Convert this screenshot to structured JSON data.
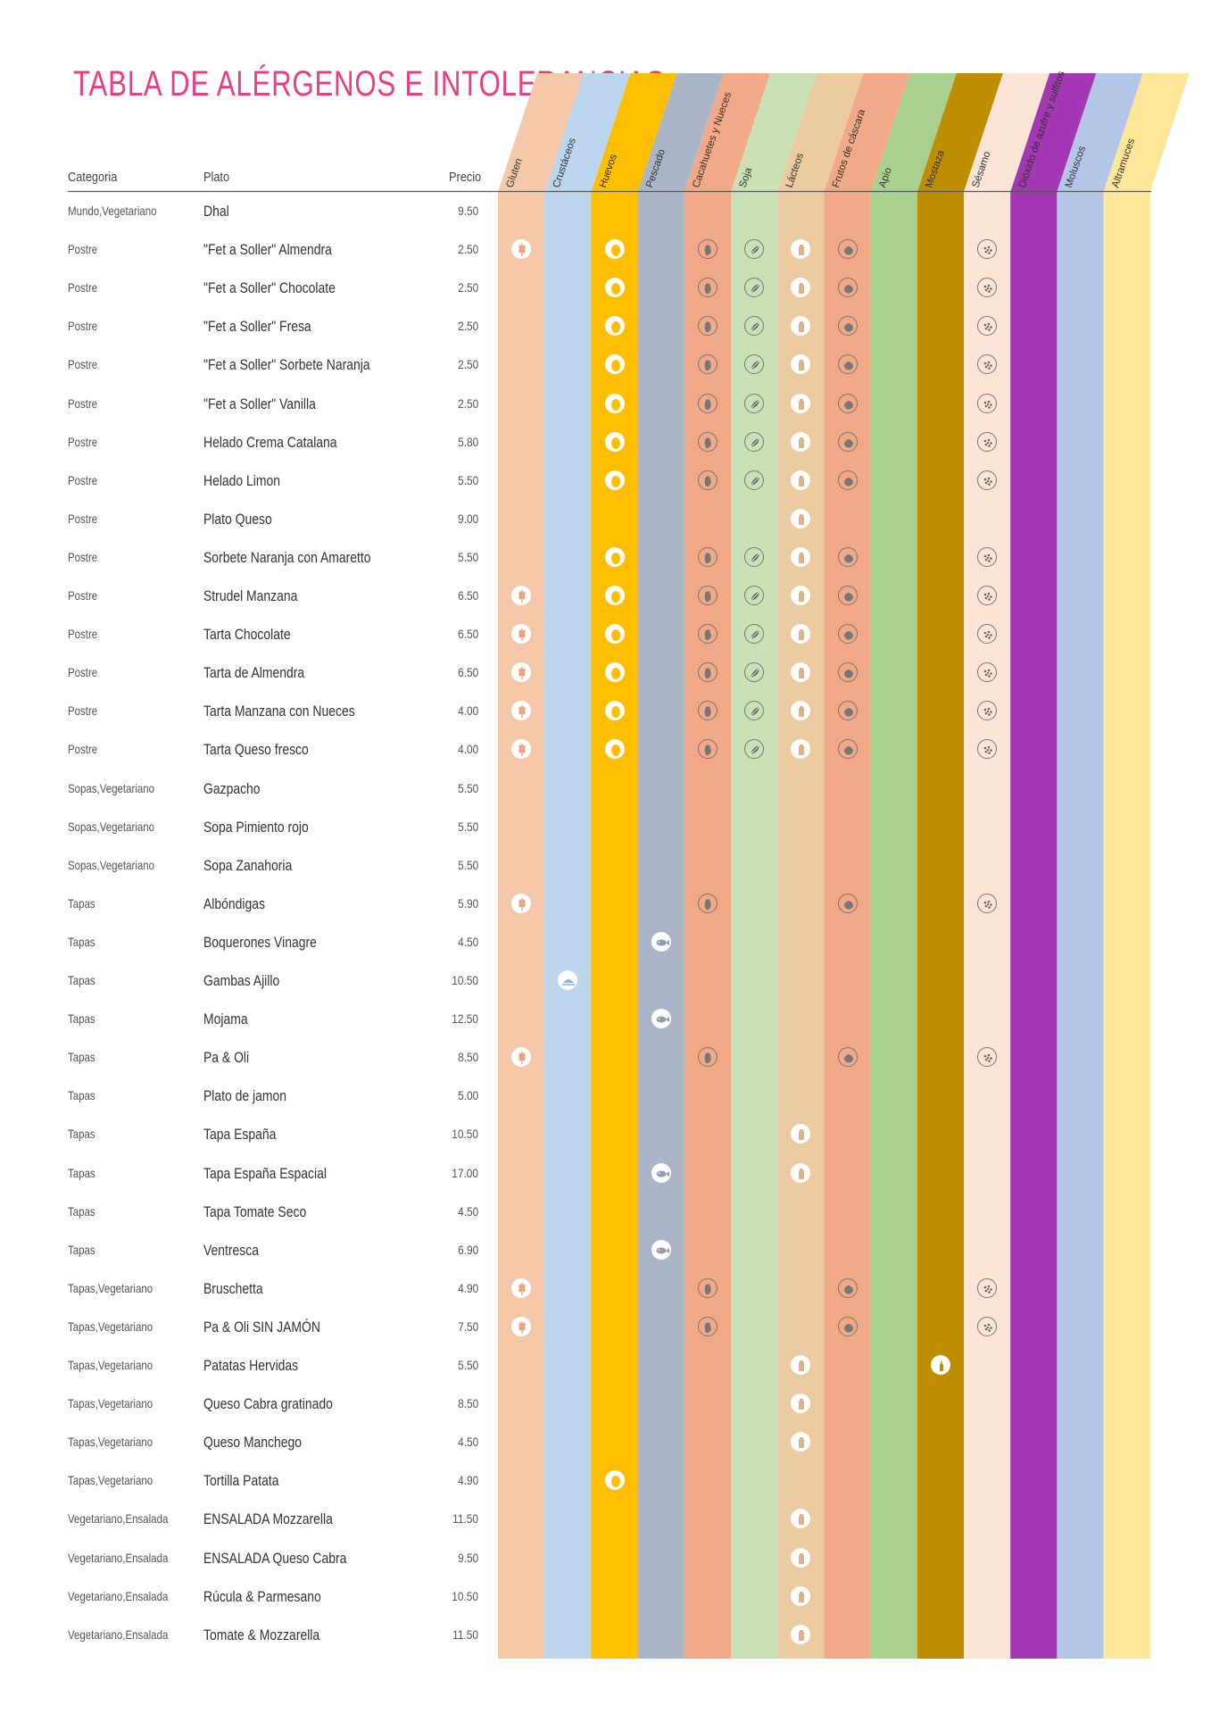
{
  "title": "TABLA DE ALÉRGENOS E INTOLERANCIAS",
  "headers": {
    "categoria": "Categoria",
    "plato": "Plato",
    "precio": "Precio"
  },
  "allergens": [
    {
      "key": "gluten",
      "label": "Gluten",
      "color": "#f6c8aa",
      "icon": "wheat-icon"
    },
    {
      "key": "crustaceos",
      "label": "Crustáceos",
      "color": "#bcd6ee",
      "icon": "crab-icon"
    },
    {
      "key": "huevos",
      "label": "Huevos",
      "color": "#ffbf00",
      "icon": "egg-icon"
    },
    {
      "key": "pescado",
      "label": "Pescado",
      "color": "#aab6c8",
      "icon": "fish-icon"
    },
    {
      "key": "cacahuetes",
      "label": "Cacahuetes y Nueces",
      "color": "#f2a987",
      "icon": "peanut-icon"
    },
    {
      "key": "soja",
      "label": "Soja",
      "color": "#c9e1b4",
      "icon": "soy-icon"
    },
    {
      "key": "lacteos",
      "label": "Lácteos",
      "color": "#edcba1",
      "icon": "milk-icon"
    },
    {
      "key": "frutos",
      "label": "Frutos de cáscara",
      "color": "#f2a987",
      "icon": "nut-icon"
    },
    {
      "key": "apio",
      "label": "Apio",
      "color": "#a8d08f",
      "icon": "celery-icon"
    },
    {
      "key": "mostaza",
      "label": "Mostaza",
      "color": "#bf8e00",
      "icon": "mustard-icon"
    },
    {
      "key": "sesamo",
      "label": "Sésamo",
      "color": "#fce4d6",
      "icon": "sesame-icon"
    },
    {
      "key": "sulfitos",
      "label": "Dióxido de azufre y sulfitos",
      "color": "#a437b4",
      "icon": "sulphite-icon"
    },
    {
      "key": "moluscos",
      "label": "Moluscos",
      "color": "#b4c6e7",
      "icon": "mollusc-icon"
    },
    {
      "key": "altramuces",
      "label": "Altramuces",
      "color": "#ffe699",
      "icon": "lupin-icon"
    }
  ],
  "rows": [
    {
      "categoria": "Mundo,Vegetariano",
      "plato": "Dhal",
      "precio": "9.50",
      "allergens": []
    },
    {
      "categoria": "Postre",
      "plato": "\"Fet a Soller\" Almendra",
      "precio": "2.50",
      "allergens": [
        "gluten",
        "huevos",
        "cacahuetes",
        "soja",
        "lacteos",
        "frutos",
        "sesamo"
      ]
    },
    {
      "categoria": "Postre",
      "plato": "\"Fet a Soller\" Chocolate",
      "precio": "2.50",
      "allergens": [
        "huevos",
        "cacahuetes",
        "soja",
        "lacteos",
        "frutos",
        "sesamo"
      ]
    },
    {
      "categoria": "Postre",
      "plato": "\"Fet a Soller\" Fresa",
      "precio": "2.50",
      "allergens": [
        "huevos",
        "cacahuetes",
        "soja",
        "lacteos",
        "frutos",
        "sesamo"
      ]
    },
    {
      "categoria": "Postre",
      "plato": "\"Fet a Soller\" Sorbete Naranja",
      "precio": "2.50",
      "allergens": [
        "huevos",
        "cacahuetes",
        "soja",
        "lacteos",
        "frutos",
        "sesamo"
      ]
    },
    {
      "categoria": "Postre",
      "plato": "\"Fet a Soller\" Vanilla",
      "precio": "2.50",
      "allergens": [
        "huevos",
        "cacahuetes",
        "soja",
        "lacteos",
        "frutos",
        "sesamo"
      ]
    },
    {
      "categoria": "Postre",
      "plato": "Helado Crema Catalana",
      "precio": "5.80",
      "allergens": [
        "huevos",
        "cacahuetes",
        "soja",
        "lacteos",
        "frutos",
        "sesamo"
      ]
    },
    {
      "categoria": "Postre",
      "plato": "Helado Limon",
      "precio": "5.50",
      "allergens": [
        "huevos",
        "cacahuetes",
        "soja",
        "lacteos",
        "frutos",
        "sesamo"
      ]
    },
    {
      "categoria": "Postre",
      "plato": "Plato Queso",
      "precio": "9.00",
      "allergens": [
        "lacteos"
      ]
    },
    {
      "categoria": "Postre",
      "plato": "Sorbete Naranja con Amaretto",
      "precio": "5.50",
      "allergens": [
        "huevos",
        "cacahuetes",
        "soja",
        "lacteos",
        "frutos",
        "sesamo"
      ]
    },
    {
      "categoria": "Postre",
      "plato": "Strudel Manzana",
      "precio": "6.50",
      "allergens": [
        "gluten",
        "huevos",
        "cacahuetes",
        "soja",
        "lacteos",
        "frutos",
        "sesamo"
      ]
    },
    {
      "categoria": "Postre",
      "plato": "Tarta Chocolate",
      "precio": "6.50",
      "allergens": [
        "gluten",
        "huevos",
        "cacahuetes",
        "soja",
        "lacteos",
        "frutos",
        "sesamo"
      ]
    },
    {
      "categoria": "Postre",
      "plato": "Tarta de Almendra",
      "precio": "6.50",
      "allergens": [
        "gluten",
        "huevos",
        "cacahuetes",
        "soja",
        "lacteos",
        "frutos",
        "sesamo"
      ]
    },
    {
      "categoria": "Postre",
      "plato": "Tarta Manzana con Nueces",
      "precio": "4.00",
      "allergens": [
        "gluten",
        "huevos",
        "cacahuetes",
        "soja",
        "lacteos",
        "frutos",
        "sesamo"
      ]
    },
    {
      "categoria": "Postre",
      "plato": "Tarta Queso fresco",
      "precio": "4.00",
      "allergens": [
        "gluten",
        "huevos",
        "cacahuetes",
        "soja",
        "lacteos",
        "frutos",
        "sesamo"
      ]
    },
    {
      "categoria": "Sopas,Vegetariano",
      "plato": "Gazpacho",
      "precio": "5.50",
      "allergens": []
    },
    {
      "categoria": "Sopas,Vegetariano",
      "plato": "Sopa Pimiento rojo",
      "precio": "5.50",
      "allergens": []
    },
    {
      "categoria": "Sopas,Vegetariano",
      "plato": "Sopa Zanahoria",
      "precio": "5.50",
      "allergens": []
    },
    {
      "categoria": "Tapas",
      "plato": "Albóndigas",
      "precio": "5.90",
      "allergens": [
        "gluten",
        "cacahuetes",
        "frutos",
        "sesamo"
      ]
    },
    {
      "categoria": "Tapas",
      "plato": "Boquerones Vinagre",
      "precio": "4.50",
      "allergens": [
        "pescado"
      ]
    },
    {
      "categoria": "Tapas",
      "plato": "Gambas Ajillo",
      "precio": "10.50",
      "allergens": [
        "crustaceos"
      ]
    },
    {
      "categoria": "Tapas",
      "plato": "Mojama",
      "precio": "12.50",
      "allergens": [
        "pescado"
      ]
    },
    {
      "categoria": "Tapas",
      "plato": "Pa & Oli",
      "precio": "8.50",
      "allergens": [
        "gluten",
        "cacahuetes",
        "frutos",
        "sesamo"
      ]
    },
    {
      "categoria": "Tapas",
      "plato": "Plato de jamon",
      "precio": "5.00",
      "allergens": []
    },
    {
      "categoria": "Tapas",
      "plato": "Tapa España",
      "precio": "10.50",
      "allergens": [
        "lacteos"
      ]
    },
    {
      "categoria": "Tapas",
      "plato": "Tapa España Espacial",
      "precio": "17.00",
      "allergens": [
        "pescado",
        "lacteos"
      ]
    },
    {
      "categoria": "Tapas",
      "plato": "Tapa Tomate Seco",
      "precio": "4.50",
      "allergens": []
    },
    {
      "categoria": "Tapas",
      "plato": "Ventresca",
      "precio": "6.90",
      "allergens": [
        "pescado"
      ]
    },
    {
      "categoria": "Tapas,Vegetariano",
      "plato": "Bruschetta",
      "precio": "4.90",
      "allergens": [
        "gluten",
        "cacahuetes",
        "frutos",
        "sesamo"
      ]
    },
    {
      "categoria": "Tapas,Vegetariano",
      "plato": "Pa & Oli SIN JAMÓN",
      "precio": "7.50",
      "allergens": [
        "gluten",
        "cacahuetes",
        "frutos",
        "sesamo"
      ]
    },
    {
      "categoria": "Tapas,Vegetariano",
      "plato": "Patatas Hervidas",
      "precio": "5.50",
      "allergens": [
        "lacteos",
        "mostaza"
      ]
    },
    {
      "categoria": "Tapas,Vegetariano",
      "plato": "Queso Cabra gratinado",
      "precio": "8.50",
      "allergens": [
        "lacteos"
      ]
    },
    {
      "categoria": "Tapas,Vegetariano",
      "plato": "Queso Manchego",
      "precio": "4.50",
      "allergens": [
        "lacteos"
      ]
    },
    {
      "categoria": "Tapas,Vegetariano",
      "plato": "Tortilla Patata",
      "precio": "4.90",
      "allergens": [
        "huevos"
      ]
    },
    {
      "categoria": "Vegetariano,Ensalada",
      "plato": "ENSALADA Mozzarella",
      "precio": "11.50",
      "allergens": [
        "lacteos"
      ]
    },
    {
      "categoria": "Vegetariano,Ensalada",
      "plato": "ENSALADA Queso Cabra",
      "precio": "9.50",
      "allergens": [
        "lacteos"
      ]
    },
    {
      "categoria": "Vegetariano,Ensalada",
      "plato": "Rúcula & Parmesano",
      "precio": "10.50",
      "allergens": [
        "lacteos"
      ]
    },
    {
      "categoria": "Vegetariano,Ensalada",
      "plato": "Tomate & Mozzarella",
      "precio": "11.50",
      "allergens": [
        "lacteos"
      ]
    }
  ]
}
